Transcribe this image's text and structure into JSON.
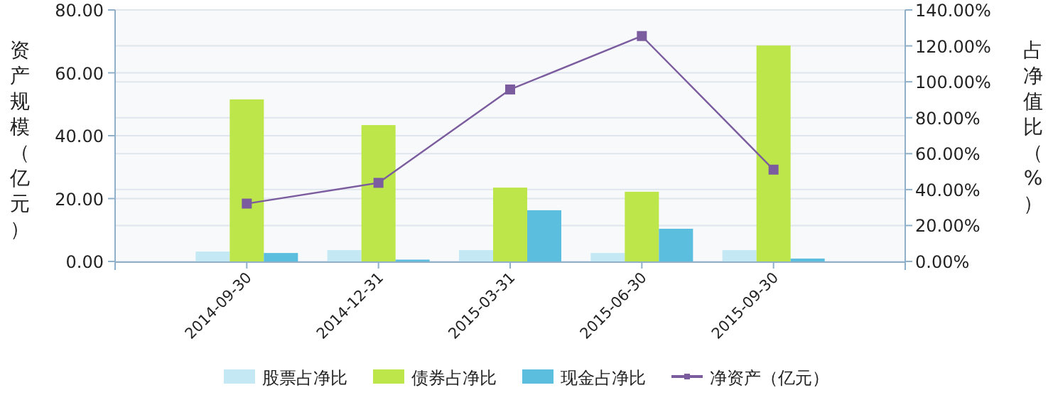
{
  "chart_data": {
    "type": "bar",
    "ylabel": "资产规模（亿元）",
    "y2label": "占净值比（%）",
    "categories": [
      "2014-09-30",
      "2014-12-31",
      "2015-03-31",
      "2015-06-30",
      "2015-09-30"
    ],
    "series": [
      {
        "name": "股票占净比",
        "axis": "y2",
        "color": "#c4e9f5",
        "values": [
          5.5,
          6.3,
          6.3,
          4.7,
          6.3
        ]
      },
      {
        "name": "债券占净比",
        "axis": "y2",
        "color": "#bde64a",
        "values": [
          90.2,
          75.9,
          41.1,
          38.8,
          120.2
        ]
      },
      {
        "name": "现金占净比",
        "axis": "y2",
        "color": "#5bbede",
        "values": [
          4.7,
          1.0,
          28.5,
          18.2,
          1.6
        ]
      },
      {
        "name": "净资产（亿元）",
        "type": "line",
        "axis": "y",
        "color": "#7b5c9e",
        "marker": "square",
        "values": [
          18.4,
          25.0,
          54.7,
          71.7,
          29.2
        ]
      }
    ],
    "ylim": [
      0,
      80
    ],
    "yticks": [
      {
        "value": 0,
        "label": "0.00"
      },
      {
        "value": 20,
        "label": "20.00"
      },
      {
        "value": 40,
        "label": "40.00"
      },
      {
        "value": 60,
        "label": "60.00"
      },
      {
        "value": 80,
        "label": "80.00"
      }
    ],
    "y2lim": [
      0,
      140
    ],
    "y2ticks": [
      {
        "value": 0,
        "label": "0.00%"
      },
      {
        "value": 20,
        "label": "20.00%"
      },
      {
        "value": 40,
        "label": "40.00%"
      },
      {
        "value": 60,
        "label": "60.00%"
      },
      {
        "value": 80,
        "label": "80.00%"
      },
      {
        "value": 100,
        "label": "100.00%"
      },
      {
        "value": 120,
        "label": "120.00%"
      },
      {
        "value": 140,
        "label": "140.00%"
      }
    ],
    "grid": "y",
    "legend": "bottom"
  }
}
